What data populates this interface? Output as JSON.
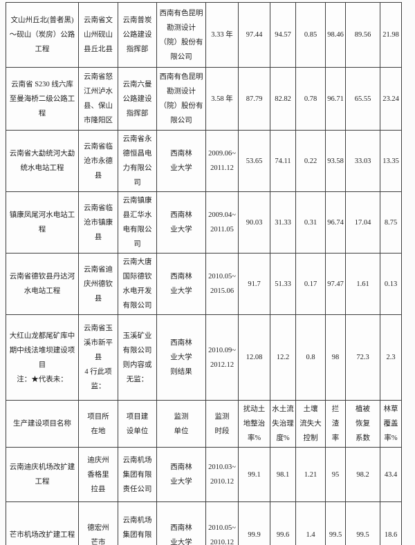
{
  "table": {
    "columns": [
      "生产建设项目名称",
      "项目所在地",
      "项目建设单位",
      "监测单位",
      "监测时段",
      "扰动土地整治率%",
      "水土流失治理度%",
      "土壤流失大控制",
      "拦渣率",
      "植被恢复系数",
      "林草覆盖率%"
    ],
    "rows": [
      {
        "type": "data",
        "cells": [
          "文山州丘北(普者黑)～砚山（炭房）公路工程",
          "云南省文山州砚山县丘北县",
          "云南普炭公路建设指挥部",
          "西南有色昆明勘测设计（院）股份有限公司",
          "3.33 年",
          "97.44",
          "94.57",
          "0.85",
          "98.46",
          "89.56",
          "21.98"
        ]
      },
      {
        "type": "data",
        "cells": [
          "云南省 S230 线六库至曼海桥二级公路工程",
          "云南省怒江州泸水县、保山市隆阳区",
          "云南六曼公路建设指挥部",
          "西南有色昆明勘测设计（院）股份有限公司",
          "3.58 年",
          "87.79",
          "82.82",
          "0.78",
          "96.71",
          "65.55",
          "23.24"
        ]
      },
      {
        "type": "data",
        "cells": [
          "云南省大勐统河大勐统水电站工程",
          "云南省临沧市永德县",
          "云南省永德恒昌电力有限公司",
          "西南林\n业大学",
          "2009.06~\n2011.12",
          "53.65",
          "74.11",
          "0.22",
          "93.58",
          "33.03",
          "13.35"
        ]
      },
      {
        "type": "data",
        "cells": [
          "镇康凤尾河水电站工程",
          "云南省临沧市镇康县",
          "云南镇康县汇华水电有限公司",
          "西南林\n业大学",
          "2009.04~\n2011.05",
          "90.03",
          "31.33",
          "0.31",
          "96.74",
          "17.04",
          "8.75"
        ]
      },
      {
        "type": "data",
        "cells": [
          "云南省德钦县丹达河水电站工程",
          "云南省迪庆州德钦县",
          "云南大唐国际德钦水电开发有限公司",
          "西南林\n业大学",
          "2010.05~\n2015.06",
          "91.7",
          "51.33",
          "0.17",
          "97.47",
          "1.61",
          "0.13"
        ]
      },
      {
        "type": "data",
        "cells": [
          "大红山龙都尾矿库中期中线法堆坝建设项目\n注：★代表未：",
          "云南省玉溪市新平县\n4 行此项监：",
          "玉溪矿业有限公司\n则内容或无监：",
          "西南林\n业大学\n则结果",
          "2010.09~\n2012.12",
          "12.08",
          "12.2",
          "0.8",
          "98",
          "72.3",
          "2.3"
        ]
      },
      {
        "type": "header",
        "cells": [
          "生产建设项目名称",
          "项目所\n在地",
          "项目建\n设单位",
          "监测\n单位",
          "监测\n时段",
          "扰动土\n地整治\n率%",
          "水土流\n失治理\n度%",
          "土壤\n流失大\n控制",
          "拦\n渣\n率",
          "植被\n恢复\n系数",
          "林草\n覆盖\n率%"
        ]
      },
      {
        "type": "data",
        "cells": [
          "云南迪庆机场改扩建工程",
          "迪庆州\n香格里\n拉县",
          "云南机场集团有限责任公司",
          "西南林\n业大学",
          "2010.03~\n2010.12",
          "99.1",
          "98.1",
          "1.21",
          "95",
          "98.2",
          "43.4"
        ]
      },
      {
        "type": "data",
        "cells": [
          "芒市机场改扩建工程",
          "德宏州\n芒市",
          "云南机场集团有限责任公司",
          "西南林\n业大学",
          "2010.05~\n2010.12",
          "99.9",
          "99.6",
          "1.4",
          "99.5",
          "99.5",
          "18.6"
        ]
      }
    ]
  }
}
